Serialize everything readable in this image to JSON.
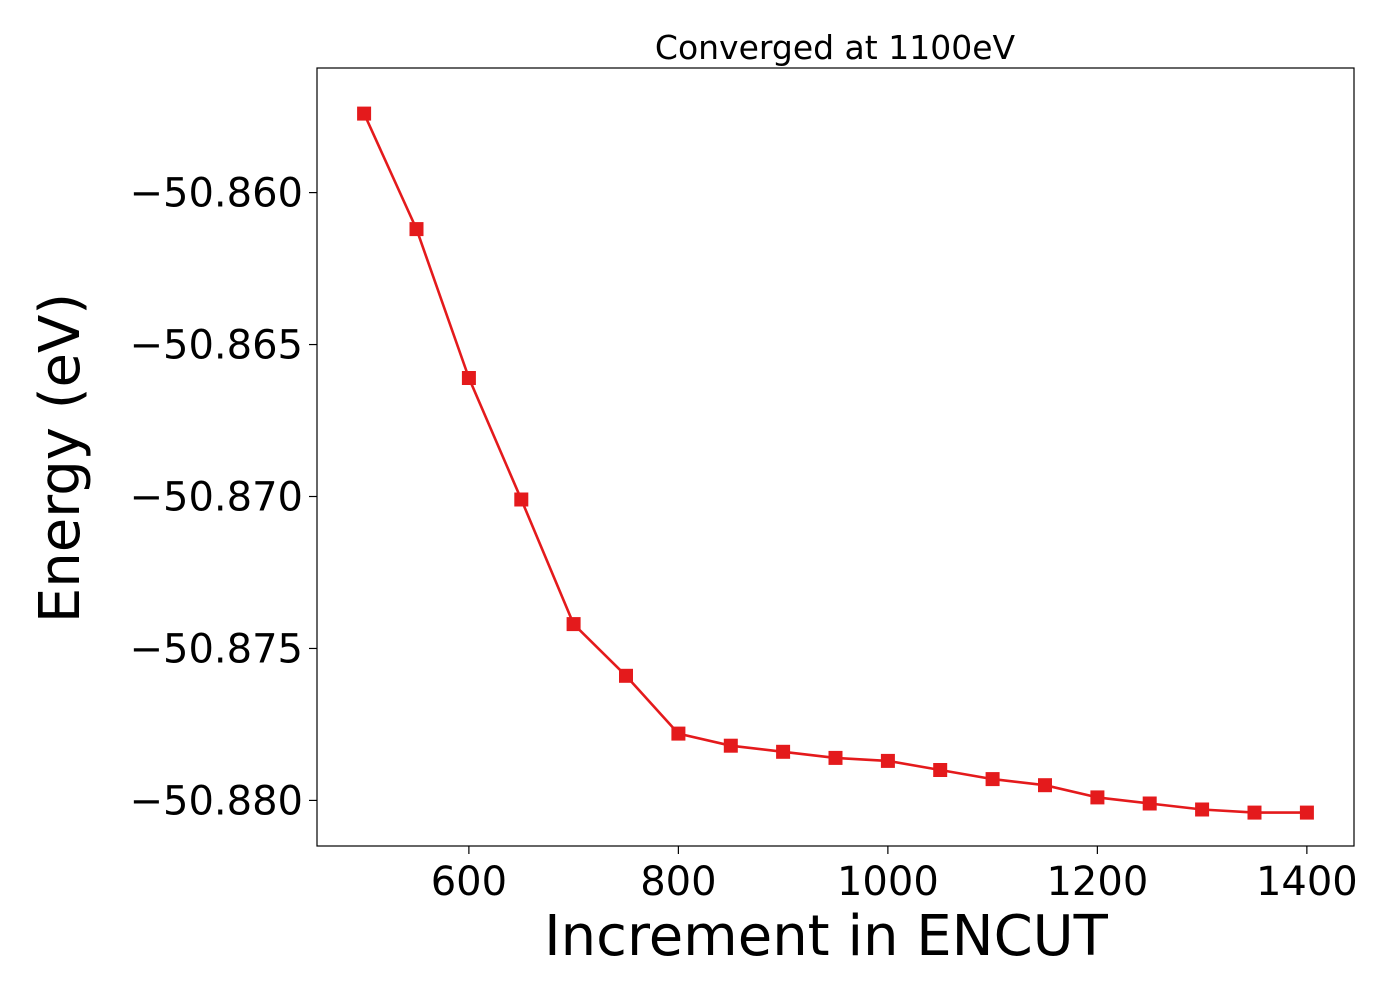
{
  "chart_data": {
    "type": "line",
    "title": "Converged at 1100eV",
    "xlabel": "Increment in ENCUT",
    "ylabel": "Energy (eV)",
    "xlim": [
      455,
      1445
    ],
    "ylim": [
      -50.8815,
      -50.8559
    ],
    "xticks": [
      600,
      800,
      1000,
      1200,
      1400
    ],
    "xtick_labels": [
      "600",
      "800",
      "1000",
      "1200",
      "1400"
    ],
    "yticks": [
      -50.88,
      -50.875,
      -50.87,
      -50.865,
      -50.86
    ],
    "ytick_labels": [
      "−50.880",
      "−50.875",
      "−50.870",
      "−50.865",
      "−50.860"
    ],
    "grid": false,
    "legend": "none",
    "series": [
      {
        "color": "#e41a1c",
        "marker": "square",
        "x": [
          500,
          550,
          600,
          650,
          700,
          750,
          800,
          850,
          900,
          950,
          1000,
          1050,
          1100,
          1150,
          1200,
          1250,
          1300,
          1350,
          1400
        ],
        "y": [
          -50.8574,
          -50.8612,
          -50.8661,
          -50.8701,
          -50.8742,
          -50.8759,
          -50.8778,
          -50.8782,
          -50.8784,
          -50.8786,
          -50.8787,
          -50.879,
          -50.8793,
          -50.8795,
          -50.8799,
          -50.8801,
          -50.8803,
          -50.8804,
          -50.8804
        ]
      }
    ]
  }
}
